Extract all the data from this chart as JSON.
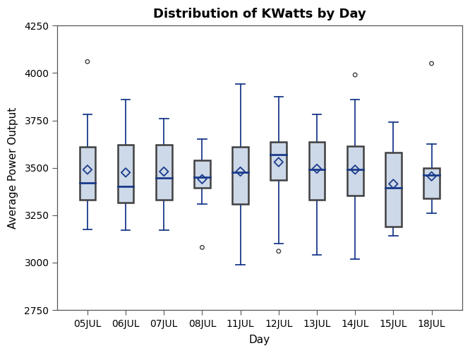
{
  "title": "Distribution of KWatts by Day",
  "xlabel": "Day",
  "ylabel": "Average Power Output",
  "categories": [
    "05JUL",
    "06JUL",
    "07JUL",
    "08JUL",
    "11JUL",
    "12JUL",
    "13JUL",
    "14JUL",
    "15JUL",
    "18JUL"
  ],
  "ylim": [
    2750,
    4250
  ],
  "yticks": [
    2750,
    3000,
    3250,
    3500,
    3750,
    4000,
    4250
  ],
  "box_data": [
    {
      "whislo": 3175,
      "q1": 3330,
      "med": 3420,
      "q3": 3610,
      "whishi": 3780,
      "mean": 3490,
      "fliers": [
        4060
      ]
    },
    {
      "whislo": 3170,
      "q1": 3315,
      "med": 3400,
      "q3": 3620,
      "whishi": 3860,
      "mean": 3475,
      "fliers": []
    },
    {
      "whislo": 3170,
      "q1": 3330,
      "med": 3445,
      "q3": 3620,
      "whishi": 3760,
      "mean": 3480,
      "fliers": []
    },
    {
      "whislo": 3310,
      "q1": 3395,
      "med": 3450,
      "q3": 3540,
      "whishi": 3650,
      "mean": 3440,
      "fliers": [
        3080
      ]
    },
    {
      "whislo": 2990,
      "q1": 3310,
      "med": 3475,
      "q3": 3610,
      "whishi": 3940,
      "mean": 3480,
      "fliers": []
    },
    {
      "whislo": 3100,
      "q1": 3435,
      "med": 3570,
      "q3": 3635,
      "whishi": 3875,
      "mean": 3530,
      "fliers": [
        3060
      ]
    },
    {
      "whislo": 3040,
      "q1": 3330,
      "med": 3490,
      "q3": 3635,
      "whishi": 3780,
      "mean": 3495,
      "fliers": []
    },
    {
      "whislo": 3020,
      "q1": 3355,
      "med": 3490,
      "q3": 3615,
      "whishi": 3860,
      "mean": 3490,
      "fliers": [
        3990
      ]
    },
    {
      "whislo": 3140,
      "q1": 3190,
      "med": 3395,
      "q3": 3580,
      "whishi": 3740,
      "mean": 3415,
      "fliers": []
    },
    {
      "whislo": 3260,
      "q1": 3340,
      "med": 3460,
      "q3": 3500,
      "whishi": 3625,
      "mean": 3455,
      "fliers": [
        4050
      ]
    }
  ],
  "box_fill_color": "#cdd8e8",
  "box_edge_color": "#404040",
  "median_color": "#1a3a8a",
  "whisker_color": "#1a3a8a",
  "cap_color": "#1a3a8a",
  "mean_marker_color": "#1a3a8a",
  "flier_color": "#404040",
  "background_color": "#ffffff",
  "plot_bg_color": "#ffffff",
  "title_fontsize": 13,
  "axis_label_fontsize": 11,
  "tick_fontsize": 10,
  "box_width": 0.42,
  "cap_ratio": 0.55
}
